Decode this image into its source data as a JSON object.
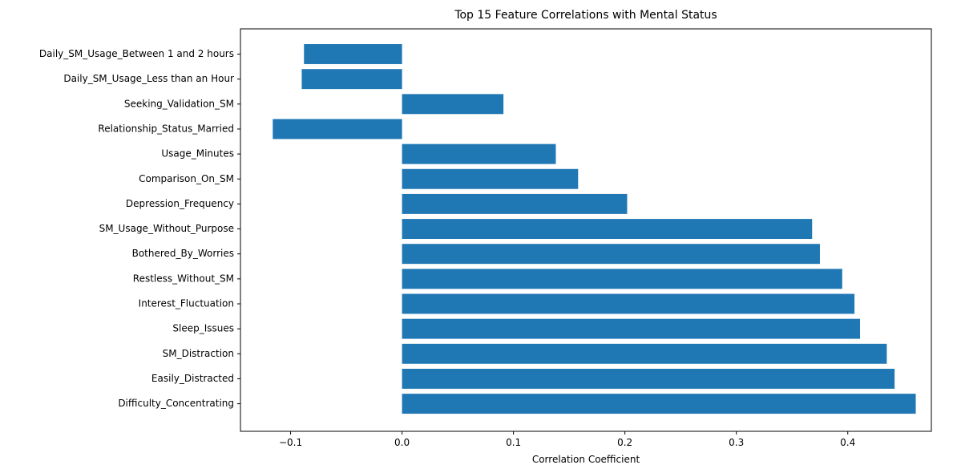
{
  "chart_data": {
    "type": "bar",
    "orientation": "horizontal",
    "title": "Top 15 Feature Correlations with Mental Status",
    "xlabel": "Correlation Coefficient",
    "ylabel": "",
    "xlim": [
      -0.145,
      0.475
    ],
    "xticks": [
      -0.1,
      0.0,
      0.1,
      0.2,
      0.3,
      0.4
    ],
    "xtick_labels": [
      "−0.1",
      "0.0",
      "0.1",
      "0.2",
      "0.3",
      "0.4"
    ],
    "grid": false,
    "bar_color": "#1f77b4",
    "categories": [
      "Daily_SM_Usage_Between 1 and 2 hours",
      "Daily_SM_Usage_Less than an Hour",
      "Seeking_Validation_SM",
      "Relationship_Status_Married",
      "Usage_Minutes",
      "Comparison_On_SM",
      "Depression_Frequency",
      "SM_Usage_Without_Purpose",
      "Bothered_By_Worries",
      "Restless_Without_SM",
      "Interest_Fluctuation",
      "Sleep_Issues",
      "SM_Distraction",
      "Easily_Distracted",
      "Difficulty_Concentrating"
    ],
    "values": [
      -0.088,
      -0.09,
      0.091,
      -0.116,
      0.138,
      0.158,
      0.202,
      0.368,
      0.375,
      0.395,
      0.406,
      0.411,
      0.435,
      0.442,
      0.461
    ]
  }
}
